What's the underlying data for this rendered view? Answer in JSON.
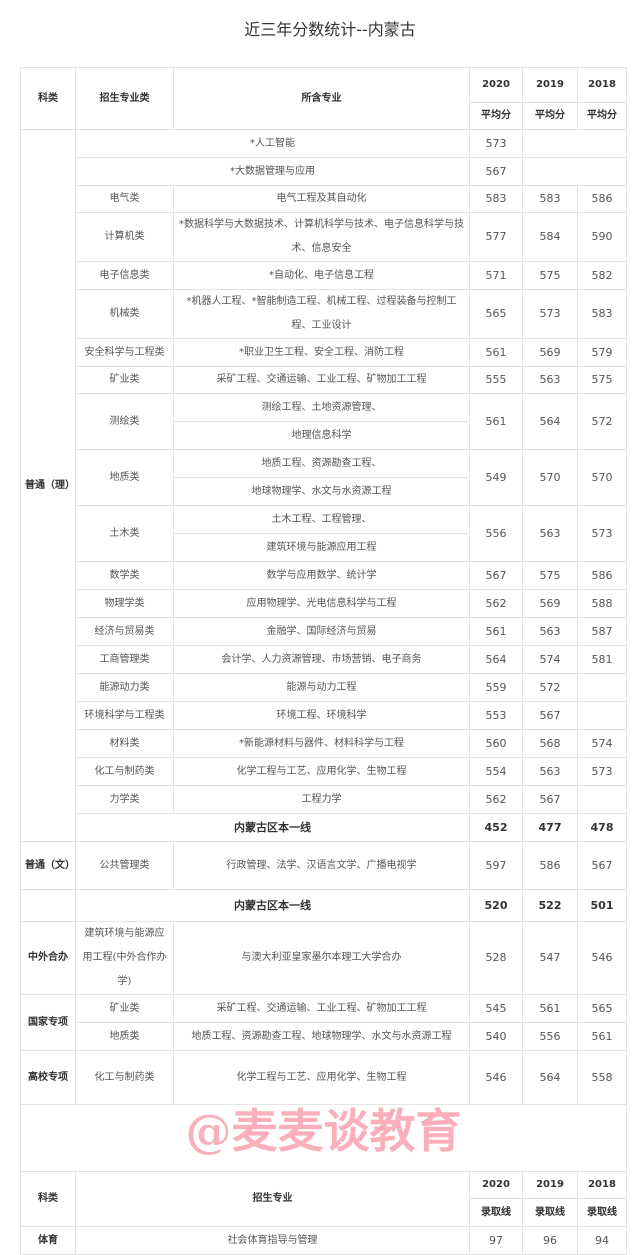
{
  "title": "近三年分数统计--内蒙古",
  "watermark": "@麦麦谈教育",
  "header": {
    "kelei": "科类",
    "category": "招生专业类",
    "majors": "所含专业",
    "years": [
      "2020",
      "2019",
      "2018"
    ],
    "sub": "平均分"
  },
  "science": {
    "kelei": "普通（理）",
    "rows": [
      {
        "cat": null,
        "majors": [
          "*人工智能"
        ],
        "scores": [
          "573",
          "",
          ""
        ]
      },
      {
        "cat": null,
        "majors": [
          "*大数据管理与应用"
        ],
        "scores": [
          "567",
          "",
          ""
        ]
      },
      {
        "cat": "电气类",
        "majors": [
          "电气工程及其自动化"
        ],
        "scores": [
          "583",
          "583",
          "586"
        ]
      },
      {
        "cat": "计算机类",
        "majors": [
          "*数据科学与大数据技术、计算机科学与技术、电子信息科学与技术、信息安全"
        ],
        "scores": [
          "577",
          "584",
          "590"
        ]
      },
      {
        "cat": "电子信息类",
        "majors": [
          "*自动化、电子信息工程"
        ],
        "scores": [
          "571",
          "575",
          "582"
        ]
      },
      {
        "cat": "机械类",
        "majors": [
          "*机器人工程、*智能制造工程、机械工程、过程装备与控制工程、工业设计"
        ],
        "scores": [
          "565",
          "573",
          "583"
        ]
      },
      {
        "cat": "安全科学与工程类",
        "majors": [
          "*职业卫生工程、安全工程、消防工程"
        ],
        "scores": [
          "561",
          "569",
          "579"
        ]
      },
      {
        "cat": "矿业类",
        "majors": [
          "采矿工程、交通运输、工业工程、矿物加工工程"
        ],
        "scores": [
          "555",
          "563",
          "575"
        ]
      },
      {
        "cat": "测绘类",
        "majors": [
          "测绘工程、土地资源管理、",
          "地理信息科学"
        ],
        "scores": [
          "561",
          "564",
          "572"
        ]
      },
      {
        "cat": "地质类",
        "majors": [
          "地质工程、资源勘查工程、",
          "地球物理学、水文与水资源工程"
        ],
        "scores": [
          "549",
          "570",
          "570"
        ]
      },
      {
        "cat": "土木类",
        "majors": [
          "土木工程、工程管理、",
          "建筑环境与能源应用工程"
        ],
        "scores": [
          "556",
          "563",
          "573"
        ]
      },
      {
        "cat": "数学类",
        "majors": [
          "数学与应用数学、统计学"
        ],
        "scores": [
          "567",
          "575",
          "586"
        ]
      },
      {
        "cat": "物理学类",
        "majors": [
          "应用物理学、光电信息科学与工程"
        ],
        "scores": [
          "562",
          "569",
          "588"
        ]
      },
      {
        "cat": "经济与贸易类",
        "majors": [
          "金融学、国际经济与贸易"
        ],
        "scores": [
          "561",
          "563",
          "587"
        ]
      },
      {
        "cat": "工商管理类",
        "majors": [
          "会计学、人力资源管理、市场营销、电子商务"
        ],
        "scores": [
          "564",
          "574",
          "581"
        ]
      },
      {
        "cat": "能源动力类",
        "majors": [
          "能源与动力工程"
        ],
        "scores": [
          "559",
          "572",
          ""
        ]
      },
      {
        "cat": "环境科学与工程类",
        "majors": [
          "环境工程、环境科学"
        ],
        "scores": [
          "553",
          "567",
          ""
        ]
      },
      {
        "cat": "材料类",
        "majors": [
          "*新能源材料与器件、材料科学与工程"
        ],
        "scores": [
          "560",
          "568",
          "574"
        ]
      },
      {
        "cat": "化工与制药类",
        "majors": [
          "化学工程与工艺、应用化学、生物工程"
        ],
        "scores": [
          "554",
          "563",
          "573"
        ]
      },
      {
        "cat": "力学类",
        "majors": [
          "工程力学"
        ],
        "scores": [
          "562",
          "567",
          ""
        ]
      }
    ],
    "summary": {
      "label": "内蒙古区本一线",
      "scores": [
        "452",
        "477",
        "478"
      ]
    }
  },
  "arts": {
    "kelei": "普通（文）",
    "rows": [
      {
        "cat": "公共管理类",
        "majors": [
          "行政管理、法学、汉语言文学、广播电视学"
        ],
        "scores": [
          "597",
          "586",
          "567"
        ]
      }
    ],
    "summary": {
      "label": "内蒙古区本一线",
      "scores": [
        "520",
        "522",
        "501"
      ]
    }
  },
  "sino_foreign": {
    "kelei": "中外合办",
    "rows": [
      {
        "cat": "建筑环境与能源应用工程(中外合作办学)",
        "majors": [
          "与澳大利亚皇家墨尔本理工大学合办"
        ],
        "scores": [
          "528",
          "547",
          "546"
        ]
      }
    ]
  },
  "national": {
    "kelei": "国家专项",
    "rows": [
      {
        "cat": "矿业类",
        "majors": [
          "采矿工程、交通运输、工业工程、矿物加工工程"
        ],
        "scores": [
          "545",
          "561",
          "565"
        ]
      },
      {
        "cat": "地质类",
        "majors": [
          "地质工程、资源勘查工程、地球物理学、水文与水资源工程"
        ],
        "scores": [
          "540",
          "556",
          "561"
        ]
      }
    ]
  },
  "university": {
    "kelei": "高校专项",
    "rows": [
      {
        "cat": "化工与制药类",
        "majors": [
          "化学工程与工艺、应用化学、生物工程"
        ],
        "scores": [
          "546",
          "564",
          "558"
        ]
      }
    ]
  },
  "sports_header": {
    "kelei": "科类",
    "major": "招生专业",
    "years": [
      "2020",
      "2019",
      "2018"
    ],
    "sub": "录取线"
  },
  "sports": {
    "kelei": "体育",
    "major": "社会体育指导与管理",
    "scores": [
      "97",
      "96",
      "94"
    ]
  }
}
